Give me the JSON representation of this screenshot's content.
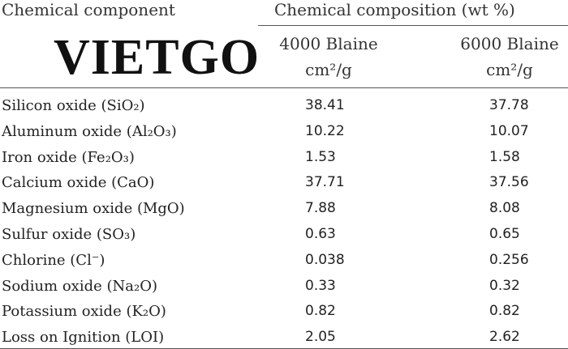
{
  "header": {
    "component": "Chemical component",
    "composition": "Chemical composition (wt %)",
    "columns": [
      {
        "title": "4000 Blaine",
        "unit": "cm²/g"
      },
      {
        "title": "6000 Blaine",
        "unit": "cm²/g"
      }
    ]
  },
  "watermark": "VIETGO",
  "table": {
    "rows": [
      [
        "Silicon oxide (SiO₂)",
        "38.41",
        "37.78"
      ],
      [
        "Aluminum oxide (Al₂O₃)",
        "10.22",
        "10.07"
      ],
      [
        "Iron oxide (Fe₂O₃)",
        "1.53",
        "1.58"
      ],
      [
        "Calcium oxide (CaO)",
        "37.71",
        "37.56"
      ],
      [
        "Magnesium oxide (MgO)",
        "7.88",
        "8.08"
      ],
      [
        "Sulfur oxide (SO₃)",
        "0.63",
        "0.65"
      ],
      [
        "Chlorine (Cl⁻)",
        "0.038",
        "0.256"
      ],
      [
        "Sodium oxide (Na₂O)",
        "0.33",
        "0.32"
      ],
      [
        "Potassium oxide (K₂O)",
        "0.82",
        "0.82"
      ],
      [
        "Loss on Ignition (LOI)",
        "2.05",
        "2.62"
      ]
    ]
  }
}
